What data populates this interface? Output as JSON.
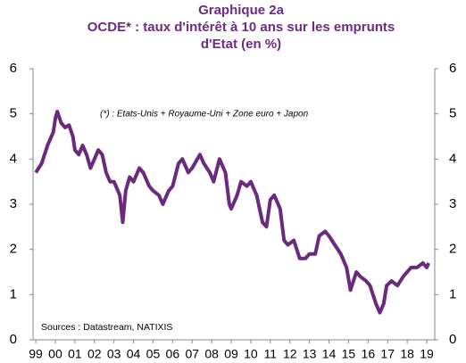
{
  "chart_data": {
    "type": "line",
    "title": "Graphique 2a",
    "subtitle": "OCDE* : taux d'intérêt à 10 ans sur les emprunts d'Etat (en %)",
    "annotations": [
      "(*) : Etats-Unis + Royaume-Uni  + Zone euro + Japon",
      "Sources : Datastream,  NATIXIS"
    ],
    "x": [
      1999.0,
      1999.3,
      1999.6,
      1999.9,
      2000.0,
      2000.1,
      2000.3,
      2000.5,
      2000.7,
      2000.9,
      2001.0,
      2001.2,
      2001.4,
      2001.6,
      2001.8,
      2002.0,
      2002.2,
      2002.4,
      2002.6,
      2002.8,
      2003.0,
      2003.3,
      2003.45,
      2003.6,
      2003.8,
      2004.0,
      2004.3,
      2004.5,
      2004.8,
      2005.0,
      2005.3,
      2005.5,
      2005.8,
      2006.0,
      2006.3,
      2006.5,
      2006.8,
      2007.0,
      2007.4,
      2007.6,
      2007.9,
      2008.1,
      2008.4,
      2008.7,
      2008.9,
      2009.0,
      2009.3,
      2009.5,
      2009.8,
      2010.0,
      2010.3,
      2010.6,
      2010.8,
      2011.0,
      2011.2,
      2011.5,
      2011.7,
      2011.9,
      2012.2,
      2012.5,
      2012.8,
      2013.0,
      2013.3,
      2013.5,
      2013.8,
      2014.0,
      2014.3,
      2014.6,
      2014.9,
      2015.1,
      2015.4,
      2015.6,
      2015.9,
      2016.1,
      2016.4,
      2016.6,
      2016.8,
      2016.95,
      2017.2,
      2017.5,
      2017.8,
      2018.0,
      2018.2,
      2018.5,
      2018.8,
      2019.0,
      2019.1
    ],
    "series": [
      {
        "name": "OCDE",
        "color": "#6a2a7e",
        "values": [
          3.7,
          3.9,
          4.3,
          4.6,
          4.9,
          5.05,
          4.8,
          4.7,
          4.75,
          4.5,
          4.2,
          4.1,
          4.3,
          4.1,
          3.8,
          4.0,
          4.2,
          4.1,
          3.7,
          3.5,
          3.5,
          3.2,
          2.6,
          3.3,
          3.6,
          3.5,
          3.8,
          3.7,
          3.4,
          3.3,
          3.2,
          3.0,
          3.3,
          3.4,
          3.9,
          4.0,
          3.7,
          3.8,
          4.1,
          3.9,
          3.7,
          3.5,
          4.0,
          3.7,
          3.0,
          2.9,
          3.2,
          3.5,
          3.4,
          3.5,
          3.2,
          2.6,
          2.5,
          3.1,
          3.2,
          2.9,
          2.2,
          2.1,
          2.2,
          1.8,
          1.8,
          1.9,
          1.9,
          2.3,
          2.4,
          2.3,
          2.1,
          1.9,
          1.6,
          1.1,
          1.5,
          1.4,
          1.3,
          1.2,
          0.8,
          0.6,
          0.8,
          1.2,
          1.3,
          1.2,
          1.4,
          1.5,
          1.6,
          1.6,
          1.7,
          1.6,
          1.7
        ]
      }
    ],
    "xlim": [
      1998.86,
      2019.41
    ],
    "xticks": [
      {
        "value": 1999,
        "label": "99"
      },
      {
        "value": 2000,
        "label": "00"
      },
      {
        "value": 2001,
        "label": "01"
      },
      {
        "value": 2002,
        "label": "02"
      },
      {
        "value": 2003,
        "label": "03"
      },
      {
        "value": 2004,
        "label": "04"
      },
      {
        "value": 2005,
        "label": "05"
      },
      {
        "value": 2006,
        "label": "06"
      },
      {
        "value": 2007,
        "label": "07"
      },
      {
        "value": 2008,
        "label": "08"
      },
      {
        "value": 2009,
        "label": "09"
      },
      {
        "value": 2010,
        "label": "10"
      },
      {
        "value": 2011,
        "label": "11"
      },
      {
        "value": 2012,
        "label": "12"
      },
      {
        "value": 2013,
        "label": "13"
      },
      {
        "value": 2014,
        "label": "14"
      },
      {
        "value": 2015,
        "label": "15"
      },
      {
        "value": 2016,
        "label": "16"
      },
      {
        "value": 2017,
        "label": "17"
      },
      {
        "value": 2018,
        "label": "18"
      },
      {
        "value": 2019,
        "label": "19"
      }
    ],
    "ylim": [
      0,
      6
    ],
    "yticks": [
      0,
      1,
      2,
      3,
      4,
      5,
      6
    ],
    "y2lim": [
      0,
      6
    ],
    "y2ticks": [
      0,
      1,
      2,
      3,
      4,
      5,
      6
    ]
  }
}
